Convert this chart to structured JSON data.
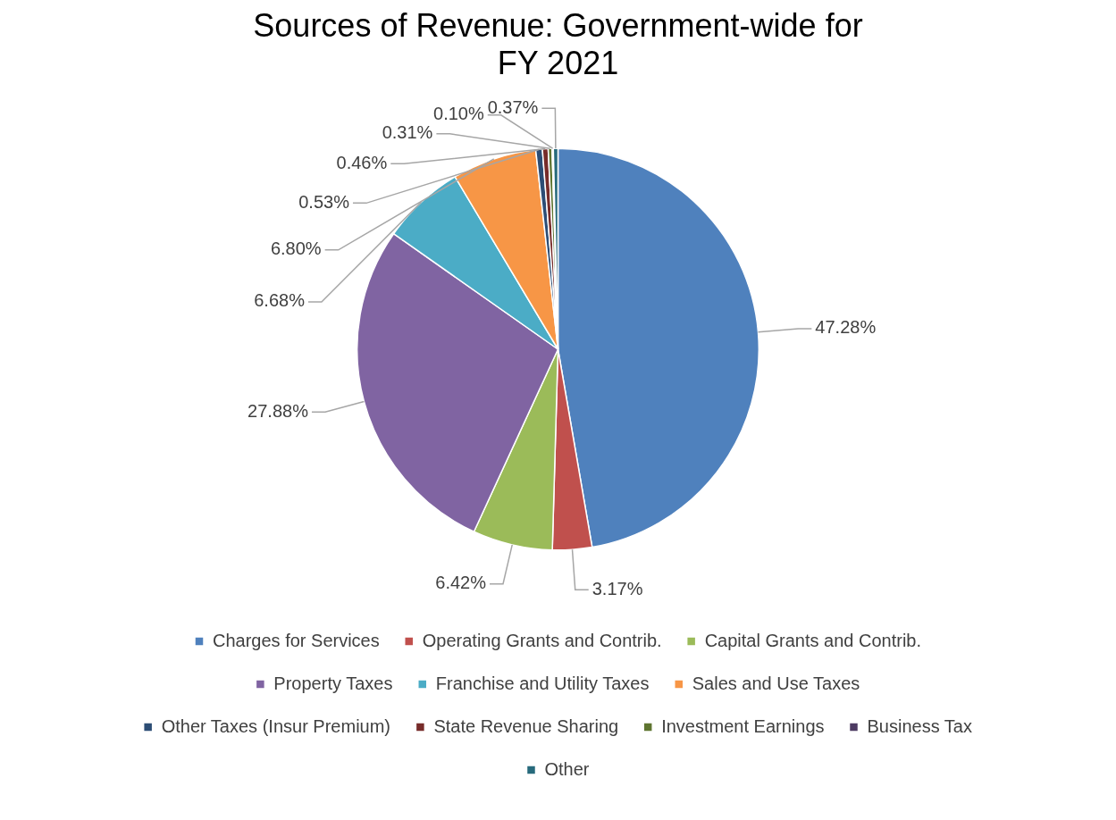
{
  "chart_data": {
    "type": "pie",
    "title": "Sources of Revenue: Government-wide for FY 2021",
    "categories": [
      "Charges for Services",
      "Operating Grants and Contrib.",
      "Capital Grants and Contrib.",
      "Property Taxes",
      "Franchise and Utility Taxes",
      "Sales and Use Taxes",
      "Other Taxes (Insur Premium)",
      "State Revenue Sharing",
      "Investment Earnings",
      "Business Tax",
      "Other"
    ],
    "values": [
      47.28,
      3.17,
      6.42,
      27.88,
      6.68,
      6.8,
      0.53,
      0.46,
      0.31,
      0.1,
      0.37
    ],
    "colors": [
      "#4f81bd",
      "#c0504d",
      "#9bbb59",
      "#8064a2",
      "#4bacc6",
      "#f79646",
      "#2c4d75",
      "#772c2a",
      "#5f7530",
      "#4d3b62",
      "#276a7c"
    ],
    "value_labels": [
      "47.28%",
      "3.17%",
      "6.42%",
      "27.88%",
      "6.68%",
      "6.80%",
      "0.53%",
      "0.46%",
      "0.31%",
      "0.10%",
      "0.37%"
    ],
    "legend": "bottom"
  }
}
